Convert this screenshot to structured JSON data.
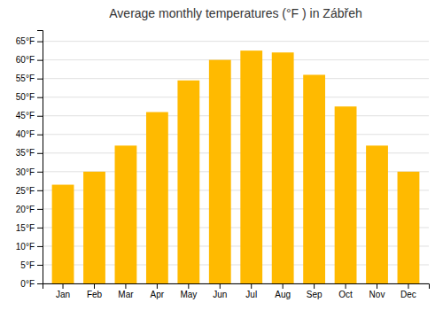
{
  "chart_data": {
    "type": "bar",
    "title": "Average monthly temperatures (°F ) in Zábřeh",
    "categories": [
      "Jan",
      "Feb",
      "Mar",
      "Apr",
      "May",
      "Jun",
      "Jul",
      "Aug",
      "Sep",
      "Oct",
      "Nov",
      "Dec"
    ],
    "values": [
      26.5,
      30.0,
      37.0,
      46.0,
      54.5,
      60.0,
      62.5,
      62.0,
      56.0,
      47.5,
      37.0,
      30.0
    ],
    "color": "#FFBA00",
    "ylim": [
      0,
      68
    ],
    "yticks": [
      {
        "value": 0,
        "label": "0°F"
      },
      {
        "value": 5,
        "label": "5°F"
      },
      {
        "value": 10,
        "label": "10°F"
      },
      {
        "value": 15,
        "label": "15°F"
      },
      {
        "value": 20,
        "label": "20°F"
      },
      {
        "value": 25,
        "label": "25°F"
      },
      {
        "value": 30,
        "label": "30°F"
      },
      {
        "value": 35,
        "label": "35°F"
      },
      {
        "value": 40,
        "label": "40°F"
      },
      {
        "value": 45,
        "label": "45°F"
      },
      {
        "value": 50,
        "label": "50°F"
      },
      {
        "value": 55,
        "label": "55°F"
      },
      {
        "value": 60,
        "label": "60°F"
      },
      {
        "value": 65,
        "label": "65°F"
      }
    ],
    "grid": true
  }
}
